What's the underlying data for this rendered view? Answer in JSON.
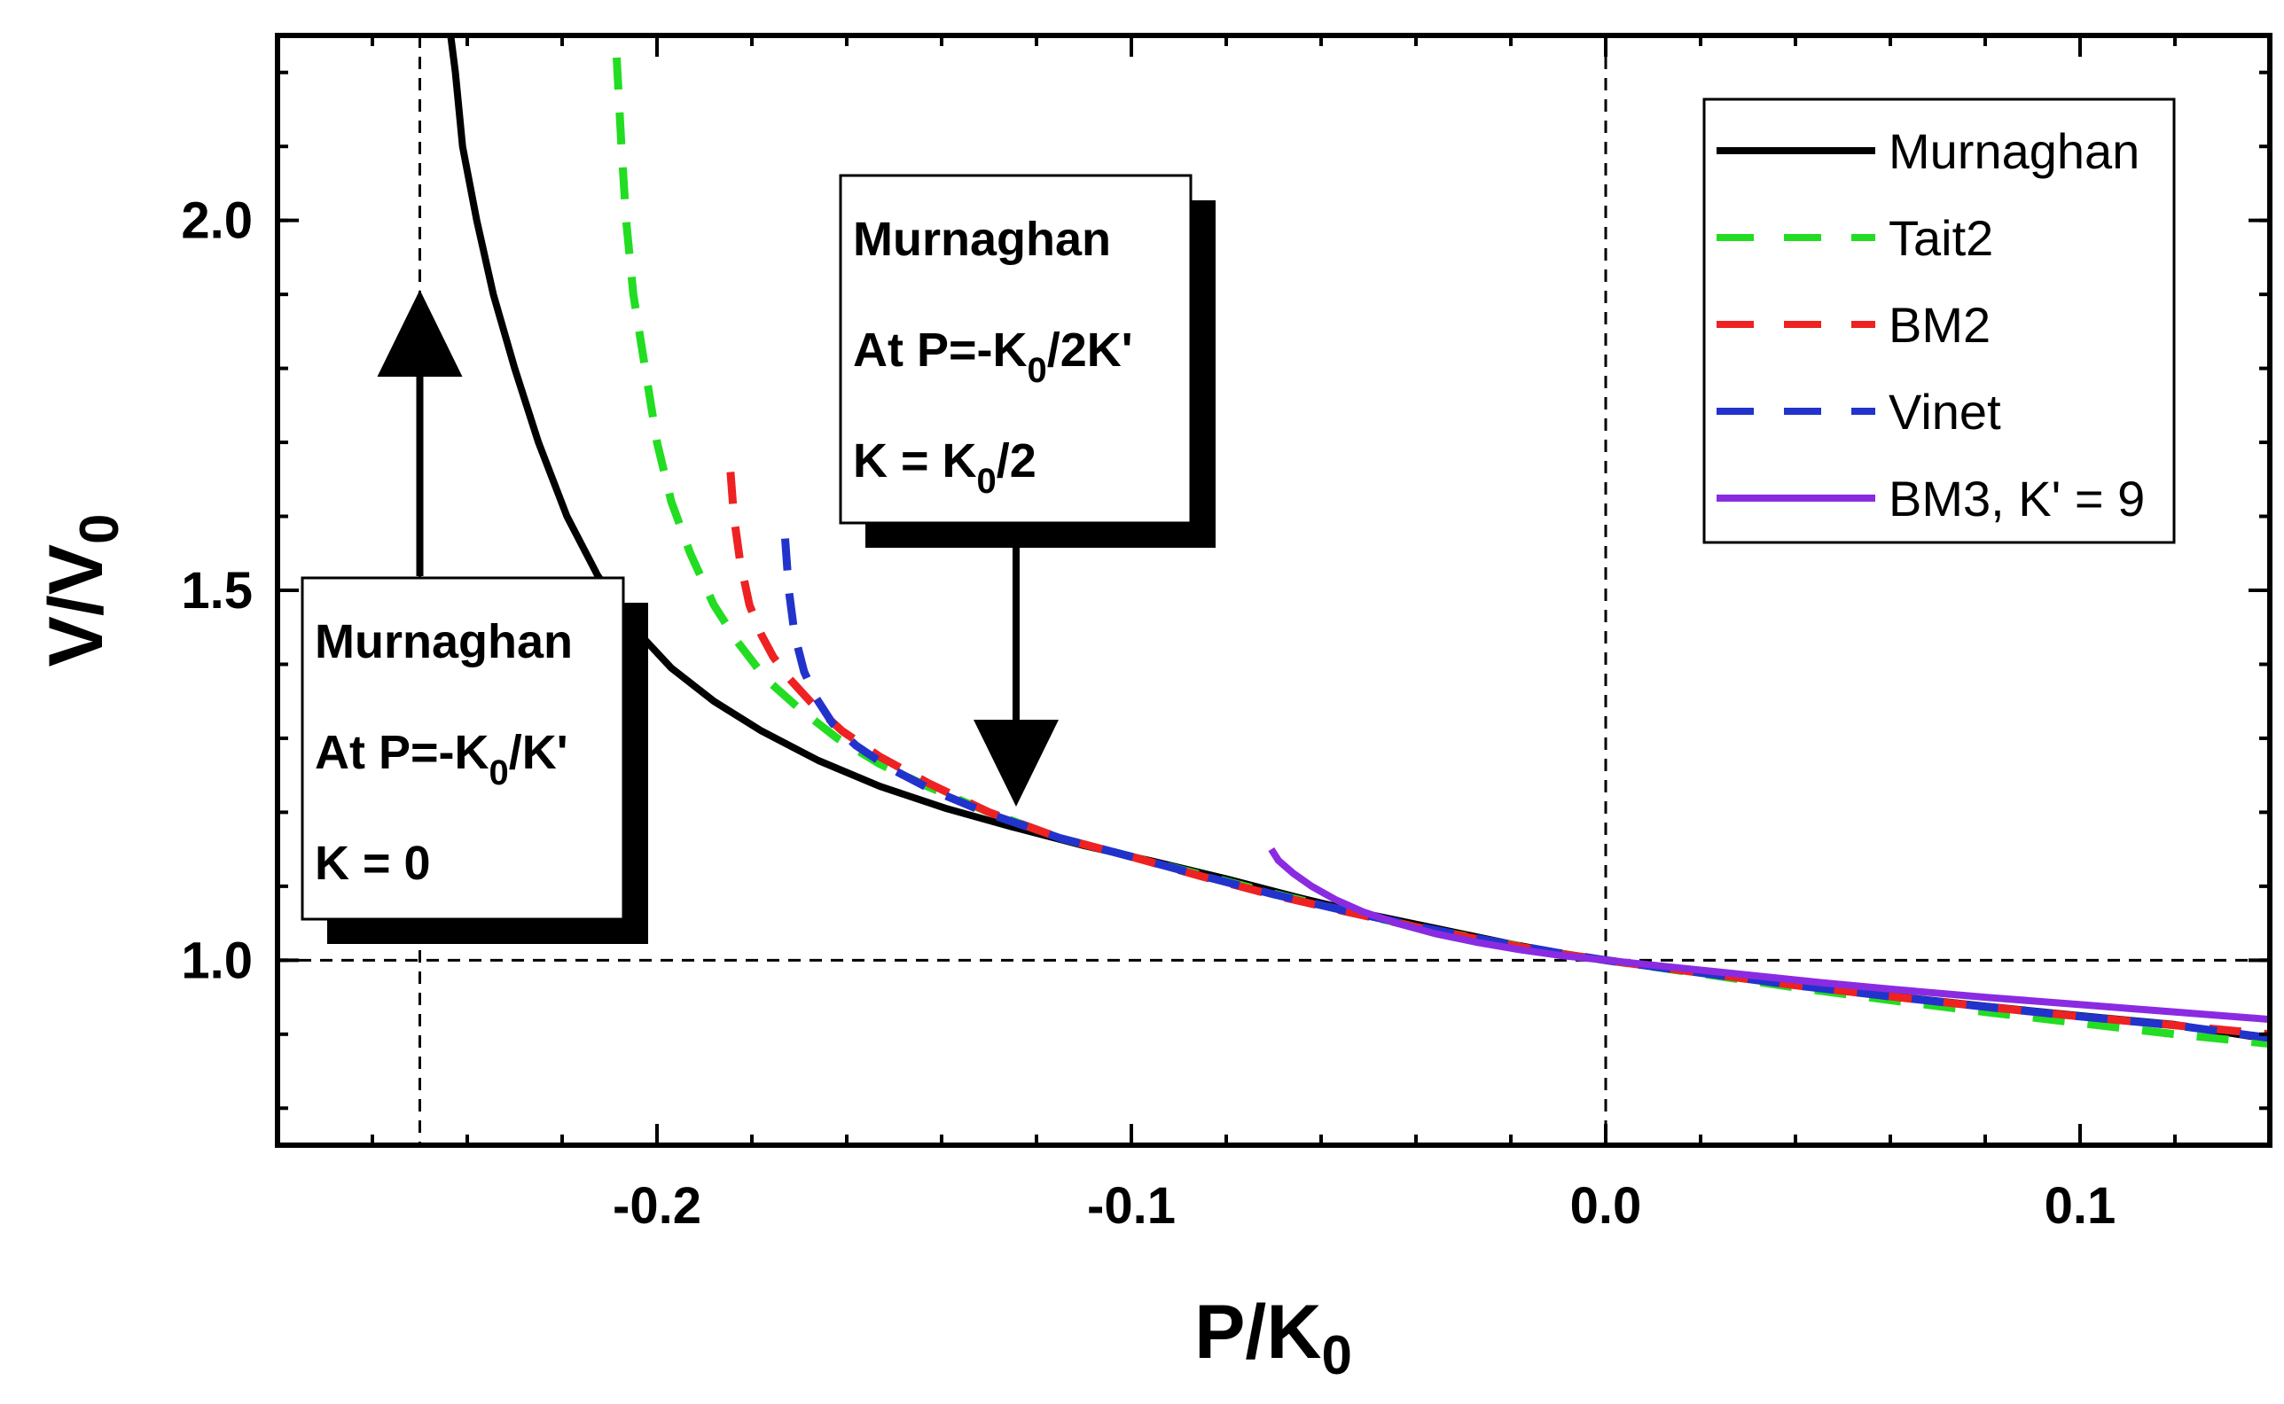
{
  "chart_data": {
    "type": "line",
    "xlabel": "P/K",
    "xlabel_sub": "0",
    "ylabel": "V/V",
    "ylabel_sub": "0",
    "xlim": [
      -0.28,
      0.14
    ],
    "ylim": [
      0.75,
      2.25
    ],
    "x_ticks": [
      {
        "value": -0.2,
        "label": "-0.2"
      },
      {
        "value": -0.1,
        "label": "-0.1"
      },
      {
        "value": 0.0,
        "label": "0.0"
      },
      {
        "value": 0.1,
        "label": "0.1"
      }
    ],
    "y_ticks": [
      {
        "value": 1.0,
        "label": "1.0"
      },
      {
        "value": 1.5,
        "label": "1.5"
      },
      {
        "value": 2.0,
        "label": "2.0"
      }
    ],
    "x_minor_step": 0.02,
    "y_minor_step": 0.1,
    "grid": false,
    "legend_position": "top-right",
    "reference_lines": [
      {
        "orientation": "vertical",
        "value": -0.25
      },
      {
        "orientation": "vertical",
        "value": 0.0
      },
      {
        "orientation": "horizontal",
        "value": 1.0
      }
    ],
    "series": [
      {
        "name": "Murnaghan",
        "color": "#000000",
        "dash": "solid",
        "x": [
          -0.2435,
          -0.2425,
          -0.241,
          -0.238,
          -0.2345,
          -0.23,
          -0.225,
          -0.219,
          -0.2125,
          -0.205,
          -0.197,
          -0.188,
          -0.178,
          -0.166,
          -0.153,
          -0.139,
          -0.125,
          -0.11,
          -0.095,
          -0.08,
          -0.065,
          -0.05,
          -0.035,
          -0.02,
          -0.01,
          0.0,
          0.02,
          0.04,
          0.06,
          0.08,
          0.1,
          0.12,
          0.14
        ],
        "y": [
          2.25,
          2.2,
          2.1,
          2.0,
          1.9,
          1.8,
          1.7,
          1.6,
          1.52,
          1.45,
          1.395,
          1.35,
          1.31,
          1.27,
          1.235,
          1.205,
          1.18,
          1.155,
          1.133,
          1.11,
          1.085,
          1.062,
          1.042,
          1.022,
          1.01,
          1.0,
          0.983,
          0.966,
          0.952,
          0.938,
          0.925,
          0.913,
          0.893
        ]
      },
      {
        "name": "Tait2",
        "color": "#22dd22",
        "dash": "dashed",
        "x": [
          -0.2085,
          -0.2075,
          -0.2065,
          -0.205,
          -0.2025,
          -0.2,
          -0.197,
          -0.193,
          -0.188,
          -0.183,
          -0.177,
          -0.17,
          -0.162,
          -0.153,
          -0.143,
          -0.13,
          -0.115,
          -0.1,
          -0.085,
          -0.07,
          -0.055,
          -0.04,
          -0.025,
          -0.01,
          0.0,
          0.02,
          0.04,
          0.06,
          0.08,
          0.1,
          0.12,
          0.14
        ],
        "y": [
          2.22,
          2.1,
          2.0,
          1.9,
          1.8,
          1.7,
          1.62,
          1.55,
          1.48,
          1.43,
          1.38,
          1.34,
          1.3,
          1.265,
          1.235,
          1.2,
          1.165,
          1.14,
          1.115,
          1.09,
          1.067,
          1.045,
          1.027,
          1.009,
          1.0,
          0.982,
          0.963,
          0.946,
          0.93,
          0.915,
          0.9,
          0.887
        ]
      },
      {
        "name": "BM2",
        "color": "#ee2222",
        "dash": "dashed",
        "x": [
          -0.1845,
          -0.1838,
          -0.1825,
          -0.1805,
          -0.178,
          -0.1755,
          -0.172,
          -0.167,
          -0.161,
          -0.153,
          -0.143,
          -0.13,
          -0.115,
          -0.1,
          -0.085,
          -0.07,
          -0.055,
          -0.04,
          -0.025,
          -0.01,
          0.0,
          0.02,
          0.04,
          0.06,
          0.08,
          0.1,
          0.12,
          0.14
        ],
        "y": [
          1.66,
          1.6,
          1.54,
          1.48,
          1.44,
          1.41,
          1.38,
          1.345,
          1.31,
          1.275,
          1.24,
          1.2,
          1.165,
          1.14,
          1.113,
          1.088,
          1.066,
          1.045,
          1.026,
          1.009,
          1.0,
          0.983,
          0.966,
          0.951,
          0.937,
          0.924,
          0.912,
          0.9
        ]
      },
      {
        "name": "Vinet",
        "color": "#2233cc",
        "dash": "dashed",
        "x": [
          -0.173,
          -0.1722,
          -0.171,
          -0.169,
          -0.1665,
          -0.163,
          -0.158,
          -0.151,
          -0.142,
          -0.13,
          -0.115,
          -0.1,
          -0.085,
          -0.07,
          -0.055,
          -0.04,
          -0.025,
          -0.01,
          0.0,
          0.02,
          0.04,
          0.06,
          0.08,
          0.1,
          0.12,
          0.14
        ],
        "y": [
          1.57,
          1.5,
          1.44,
          1.39,
          1.355,
          1.32,
          1.29,
          1.26,
          1.23,
          1.198,
          1.165,
          1.14,
          1.114,
          1.089,
          1.067,
          1.046,
          1.027,
          1.01,
          1.0,
          0.983,
          0.966,
          0.951,
          0.937,
          0.924,
          0.912,
          0.895
        ]
      },
      {
        "name": "BM3, K' = 9",
        "color": "#8a2be2",
        "dash": "solid",
        "x": [
          -0.0705,
          -0.069,
          -0.066,
          -0.062,
          -0.057,
          -0.051,
          -0.044,
          -0.036,
          -0.027,
          -0.018,
          -0.009,
          0.0,
          0.015,
          0.03,
          0.045,
          0.06,
          0.08,
          0.1,
          0.12,
          0.14
        ],
        "y": [
          1.15,
          1.135,
          1.118,
          1.1,
          1.082,
          1.065,
          1.05,
          1.036,
          1.024,
          1.014,
          1.006,
          1.0,
          0.99,
          0.98,
          0.97,
          0.961,
          0.95,
          0.94,
          0.93,
          0.92
        ]
      }
    ],
    "annotations": [
      {
        "lines": [
          {
            "text": "Murnaghan"
          },
          {
            "text": "At P=-K",
            "sub": "0",
            "after": "/K'"
          },
          {
            "text": "K = 0"
          }
        ]
      },
      {
        "lines": [
          {
            "text": "Murnaghan"
          },
          {
            "text": "At P=-K",
            "sub": "0",
            "after": "/2K'"
          },
          {
            "text": "K = K",
            "sub": "0",
            "after": "/2"
          }
        ]
      }
    ]
  }
}
